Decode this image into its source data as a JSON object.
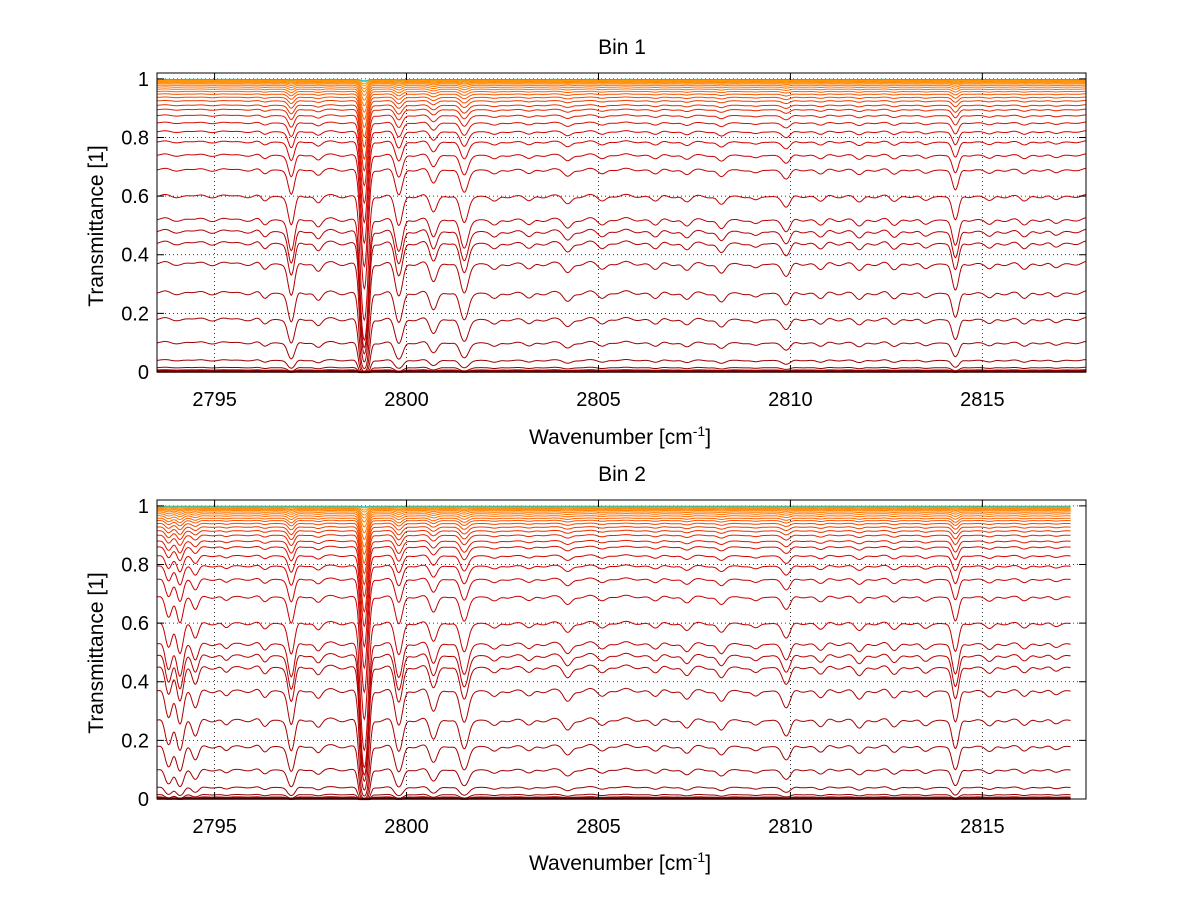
{
  "figure": {
    "background": "#ffffff"
  },
  "colors": {
    "deep": "#8b0000",
    "red": "#d40000",
    "orange": "#ff6a00",
    "amber": "#ffa500",
    "cyan": "#18c0c0",
    "grid": "#000000"
  },
  "chart_data": [
    {
      "type": "line",
      "title": "Bin 1",
      "xlabel": "Wavenumber [cm",
      "xlabel_sup": "-1",
      "xlabel_end": "]",
      "ylabel": "Transmittance [1]",
      "xlim": [
        2793.5,
        2817.7
      ],
      "ylim": [
        0,
        1.02
      ],
      "grid": true,
      "x_ticks": [
        2795,
        2800,
        2805,
        2810,
        2815
      ],
      "x_tick_labels": [
        "2795",
        "2800",
        "2805",
        "2810",
        "2815"
      ],
      "y_ticks": [
        0,
        0.2,
        0.4,
        0.6,
        0.8,
        1
      ],
      "y_tick_labels": [
        "0",
        "0.2",
        "0.4",
        "0.6",
        "0.8",
        "1"
      ],
      "line_end": 2817.7,
      "series_levels": [
        0.0,
        0.005,
        0.015,
        0.04,
        0.1,
        0.18,
        0.27,
        0.37,
        0.44,
        0.48,
        0.52,
        0.6,
        0.69,
        0.74,
        0.785,
        0.82,
        0.85,
        0.875,
        0.895,
        0.91,
        0.925,
        0.937,
        0.948,
        0.957,
        0.965,
        0.972,
        0.978,
        0.983,
        0.987,
        0.99,
        0.993,
        0.995,
        0.997,
        0.998
      ],
      "lines": [
        {
          "name": "absorption-line-2796.3",
          "center": 2796.3,
          "strength": 0.1,
          "width": 0.08
        },
        {
          "name": "absorption-line-2797.0",
          "center": 2797.0,
          "strength": 0.6,
          "width": 0.08
        },
        {
          "name": "absorption-line-2797.7",
          "center": 2797.7,
          "strength": 0.12,
          "width": 0.08
        },
        {
          "name": "absorption-line-2798.9",
          "center": 2798.9,
          "strength": 4.0,
          "width": 0.08
        },
        {
          "name": "absorption-line-2799.8",
          "center": 2799.8,
          "strength": 0.6,
          "width": 0.09
        },
        {
          "name": "absorption-line-2800.7",
          "center": 2800.7,
          "strength": 0.3,
          "width": 0.09
        },
        {
          "name": "absorption-line-2801.5",
          "center": 2801.5,
          "strength": 0.55,
          "width": 0.1
        },
        {
          "name": "absorption-line-2802.3",
          "center": 2802.3,
          "strength": 0.12,
          "width": 0.1
        },
        {
          "name": "absorption-line-2803.2",
          "center": 2803.2,
          "strength": 0.1,
          "width": 0.1
        },
        {
          "name": "absorption-line-2804.2",
          "center": 2804.2,
          "strength": 0.15,
          "width": 0.1
        },
        {
          "name": "absorption-line-2805.1",
          "center": 2805.1,
          "strength": 0.08,
          "width": 0.1
        },
        {
          "name": "absorption-line-2806.5",
          "center": 2806.5,
          "strength": 0.1,
          "width": 0.1
        },
        {
          "name": "absorption-line-2807.3",
          "center": 2807.3,
          "strength": 0.12,
          "width": 0.1
        },
        {
          "name": "absorption-line-2808.2",
          "center": 2808.2,
          "strength": 0.18,
          "width": 0.1
        },
        {
          "name": "absorption-line-2809.1",
          "center": 2809.1,
          "strength": 0.1,
          "width": 0.1
        },
        {
          "name": "absorption-line-2809.9",
          "center": 2809.9,
          "strength": 0.22,
          "width": 0.1
        },
        {
          "name": "absorption-line-2810.8",
          "center": 2810.8,
          "strength": 0.1,
          "width": 0.1
        },
        {
          "name": "absorption-line-2811.8",
          "center": 2811.8,
          "strength": 0.12,
          "width": 0.1
        },
        {
          "name": "absorption-line-2812.7",
          "center": 2812.7,
          "strength": 0.1,
          "width": 0.1
        },
        {
          "name": "absorption-line-2813.5",
          "center": 2813.5,
          "strength": 0.1,
          "width": 0.1
        },
        {
          "name": "absorption-line-2814.3",
          "center": 2814.3,
          "strength": 0.5,
          "width": 0.08
        },
        {
          "name": "absorption-line-2815.2",
          "center": 2815.2,
          "strength": 0.1,
          "width": 0.1
        },
        {
          "name": "absorption-line-2816.1",
          "center": 2816.1,
          "strength": 0.1,
          "width": 0.1
        },
        {
          "name": "absorption-line-2816.9",
          "center": 2816.9,
          "strength": 0.08,
          "width": 0.1
        }
      ]
    },
    {
      "type": "line",
      "title": "Bin 2",
      "xlabel": "Wavenumber [cm",
      "xlabel_sup": "-1",
      "xlabel_end": "]",
      "ylabel": "Transmittance [1]",
      "xlim": [
        2793.5,
        2817.7
      ],
      "ylim": [
        0,
        1.02
      ],
      "grid": true,
      "x_ticks": [
        2795,
        2800,
        2805,
        2810,
        2815
      ],
      "x_tick_labels": [
        "2795",
        "2800",
        "2805",
        "2810",
        "2815"
      ],
      "y_ticks": [
        0,
        0.2,
        0.4,
        0.6,
        0.8,
        1
      ],
      "y_tick_labels": [
        "0",
        "0.2",
        "0.4",
        "0.6",
        "0.8",
        "1"
      ],
      "line_end": 2817.3,
      "series_levels": [
        0.0,
        0.005,
        0.015,
        0.04,
        0.1,
        0.18,
        0.27,
        0.37,
        0.45,
        0.49,
        0.53,
        0.6,
        0.69,
        0.75,
        0.795,
        0.83,
        0.86,
        0.88,
        0.9,
        0.915,
        0.928,
        0.94,
        0.95,
        0.958,
        0.966,
        0.973,
        0.979,
        0.984,
        0.988,
        0.991,
        0.994,
        0.996,
        0.998,
        0.999
      ],
      "lines": [
        {
          "name": "absorption-line-2793.8",
          "center": 2793.8,
          "strength": 0.5,
          "width": 0.08
        },
        {
          "name": "absorption-line-2794.1",
          "center": 2794.1,
          "strength": 0.6,
          "width": 0.08
        },
        {
          "name": "absorption-line-2794.5",
          "center": 2794.5,
          "strength": 0.3,
          "width": 0.08
        },
        {
          "name": "absorption-line-2795.3",
          "center": 2795.3,
          "strength": 0.1,
          "width": 0.08
        },
        {
          "name": "absorption-line-2796.3",
          "center": 2796.3,
          "strength": 0.12,
          "width": 0.08
        },
        {
          "name": "absorption-line-2797.0",
          "center": 2797.0,
          "strength": 0.65,
          "width": 0.08
        },
        {
          "name": "absorption-line-2797.7",
          "center": 2797.7,
          "strength": 0.12,
          "width": 0.08
        },
        {
          "name": "absorption-line-2798.9",
          "center": 2798.9,
          "strength": 4.2,
          "width": 0.08
        },
        {
          "name": "absorption-line-2799.8",
          "center": 2799.8,
          "strength": 0.65,
          "width": 0.09
        },
        {
          "name": "absorption-line-2800.7",
          "center": 2800.7,
          "strength": 0.35,
          "width": 0.09
        },
        {
          "name": "absorption-line-2801.5",
          "center": 2801.5,
          "strength": 0.6,
          "width": 0.1
        },
        {
          "name": "absorption-line-2802.3",
          "center": 2802.3,
          "strength": 0.12,
          "width": 0.1
        },
        {
          "name": "absorption-line-2803.2",
          "center": 2803.2,
          "strength": 0.1,
          "width": 0.1
        },
        {
          "name": "absorption-line-2804.2",
          "center": 2804.2,
          "strength": 0.18,
          "width": 0.1
        },
        {
          "name": "absorption-line-2805.1",
          "center": 2805.1,
          "strength": 0.08,
          "width": 0.1
        },
        {
          "name": "absorption-line-2806.5",
          "center": 2806.5,
          "strength": 0.1,
          "width": 0.1
        },
        {
          "name": "absorption-line-2807.3",
          "center": 2807.3,
          "strength": 0.15,
          "width": 0.1
        },
        {
          "name": "absorption-line-2808.2",
          "center": 2808.2,
          "strength": 0.2,
          "width": 0.1
        },
        {
          "name": "absorption-line-2809.1",
          "center": 2809.1,
          "strength": 0.12,
          "width": 0.1
        },
        {
          "name": "absorption-line-2809.9",
          "center": 2809.9,
          "strength": 0.3,
          "width": 0.1
        },
        {
          "name": "absorption-line-2810.8",
          "center": 2810.8,
          "strength": 0.12,
          "width": 0.1
        },
        {
          "name": "absorption-line-2811.8",
          "center": 2811.8,
          "strength": 0.15,
          "width": 0.1
        },
        {
          "name": "absorption-line-2812.7",
          "center": 2812.7,
          "strength": 0.12,
          "width": 0.1
        },
        {
          "name": "absorption-line-2813.5",
          "center": 2813.5,
          "strength": 0.12,
          "width": 0.1
        },
        {
          "name": "absorption-line-2814.3",
          "center": 2814.3,
          "strength": 0.6,
          "width": 0.08
        },
        {
          "name": "absorption-line-2815.2",
          "center": 2815.2,
          "strength": 0.12,
          "width": 0.1
        },
        {
          "name": "absorption-line-2816.1",
          "center": 2816.1,
          "strength": 0.1,
          "width": 0.1
        },
        {
          "name": "absorption-line-2816.9",
          "center": 2816.9,
          "strength": 0.08,
          "width": 0.1
        }
      ]
    }
  ]
}
